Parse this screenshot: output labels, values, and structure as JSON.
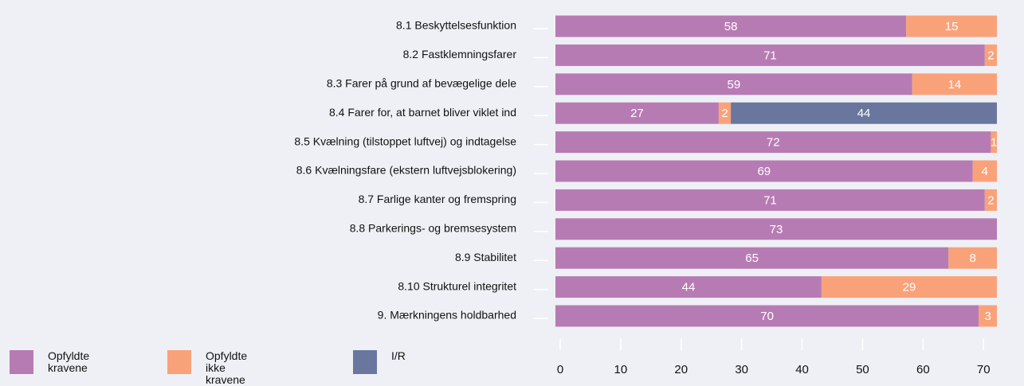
{
  "chart_data": {
    "type": "stacked-barh",
    "categories": [
      "8.1 Beskyttelsesfunktion",
      "8.2 Fastklemningsfarer",
      "8.3 Farer på grund af bevægelige dele",
      "8.4 Farer for, at barnet bliver viklet ind",
      "8.5 Kvælning (tilstoppet luftvej) og indtagelse",
      "8.6 Kvælningsfare (ekstern luftvejsblokering)",
      "8.7 Farlige kanter og fremspring",
      "8.8 Parkerings- og bremsesystem",
      "8.9 Stabilitet",
      "8.10 Strukturel integritet",
      "9. Mærkningens holdbarhed"
    ],
    "series": [
      {
        "name": "Opfyldte kravene",
        "color": "#b77bb4",
        "values": [
          58,
          71,
          59,
          27,
          72,
          69,
          71,
          73,
          65,
          44,
          70
        ]
      },
      {
        "name": "Opfyldte ikke kravene",
        "color": "#f9a27a",
        "values": [
          15,
          2,
          14,
          2,
          1,
          4,
          2,
          null,
          8,
          29,
          3
        ]
      },
      {
        "name": "I/R",
        "color": "#69779e",
        "values": [
          null,
          null,
          null,
          44,
          null,
          null,
          null,
          null,
          null,
          null,
          null
        ]
      }
    ],
    "xlim": [
      0,
      73
    ],
    "xticks": [
      0,
      10,
      20,
      30,
      40,
      50,
      60,
      70
    ]
  }
}
